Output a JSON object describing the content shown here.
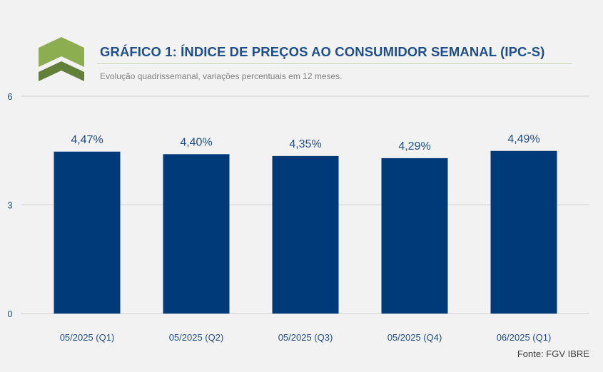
{
  "header": {
    "title": "GRÁFICO 1: ÍNDICE DE PREÇOS AO CONSUMIDOR SEMANAL (IPC-S)",
    "subtitle": "Evolução quadrissemanal, variações percentuais em 12 meses.",
    "logo_icon": "chevron-up-logo-icon"
  },
  "footer": {
    "source": "Fonte: FGV IBRE"
  },
  "colors": {
    "bar": "#003a78",
    "label": "#1f4e8c",
    "logo_light": "#8cad50",
    "logo_dark": "#62803a",
    "grid": "#cfcfcf",
    "background": "#f2f2f2"
  },
  "chart_data": {
    "type": "bar",
    "categories": [
      "05/2025 (Q1)",
      "05/2025 (Q2)",
      "05/2025 (Q3)",
      "05/2025 (Q4)",
      "06/2025 (Q1)"
    ],
    "values": [
      4.47,
      4.4,
      4.35,
      4.29,
      4.49
    ],
    "data_labels": [
      "4,47%",
      "4,40%",
      "4,35%",
      "4,29%",
      "4,49%"
    ],
    "title": "GRÁFICO 1: ÍNDICE DE PREÇOS AO CONSUMIDOR SEMANAL (IPC-S)",
    "subtitle": "Evolução quadrissemanal, variações percentuais em 12 meses.",
    "xlabel": "",
    "ylabel": "",
    "ylim": [
      0,
      6
    ],
    "yticks": [
      0,
      3,
      6
    ],
    "grid": true,
    "legend": "none"
  }
}
